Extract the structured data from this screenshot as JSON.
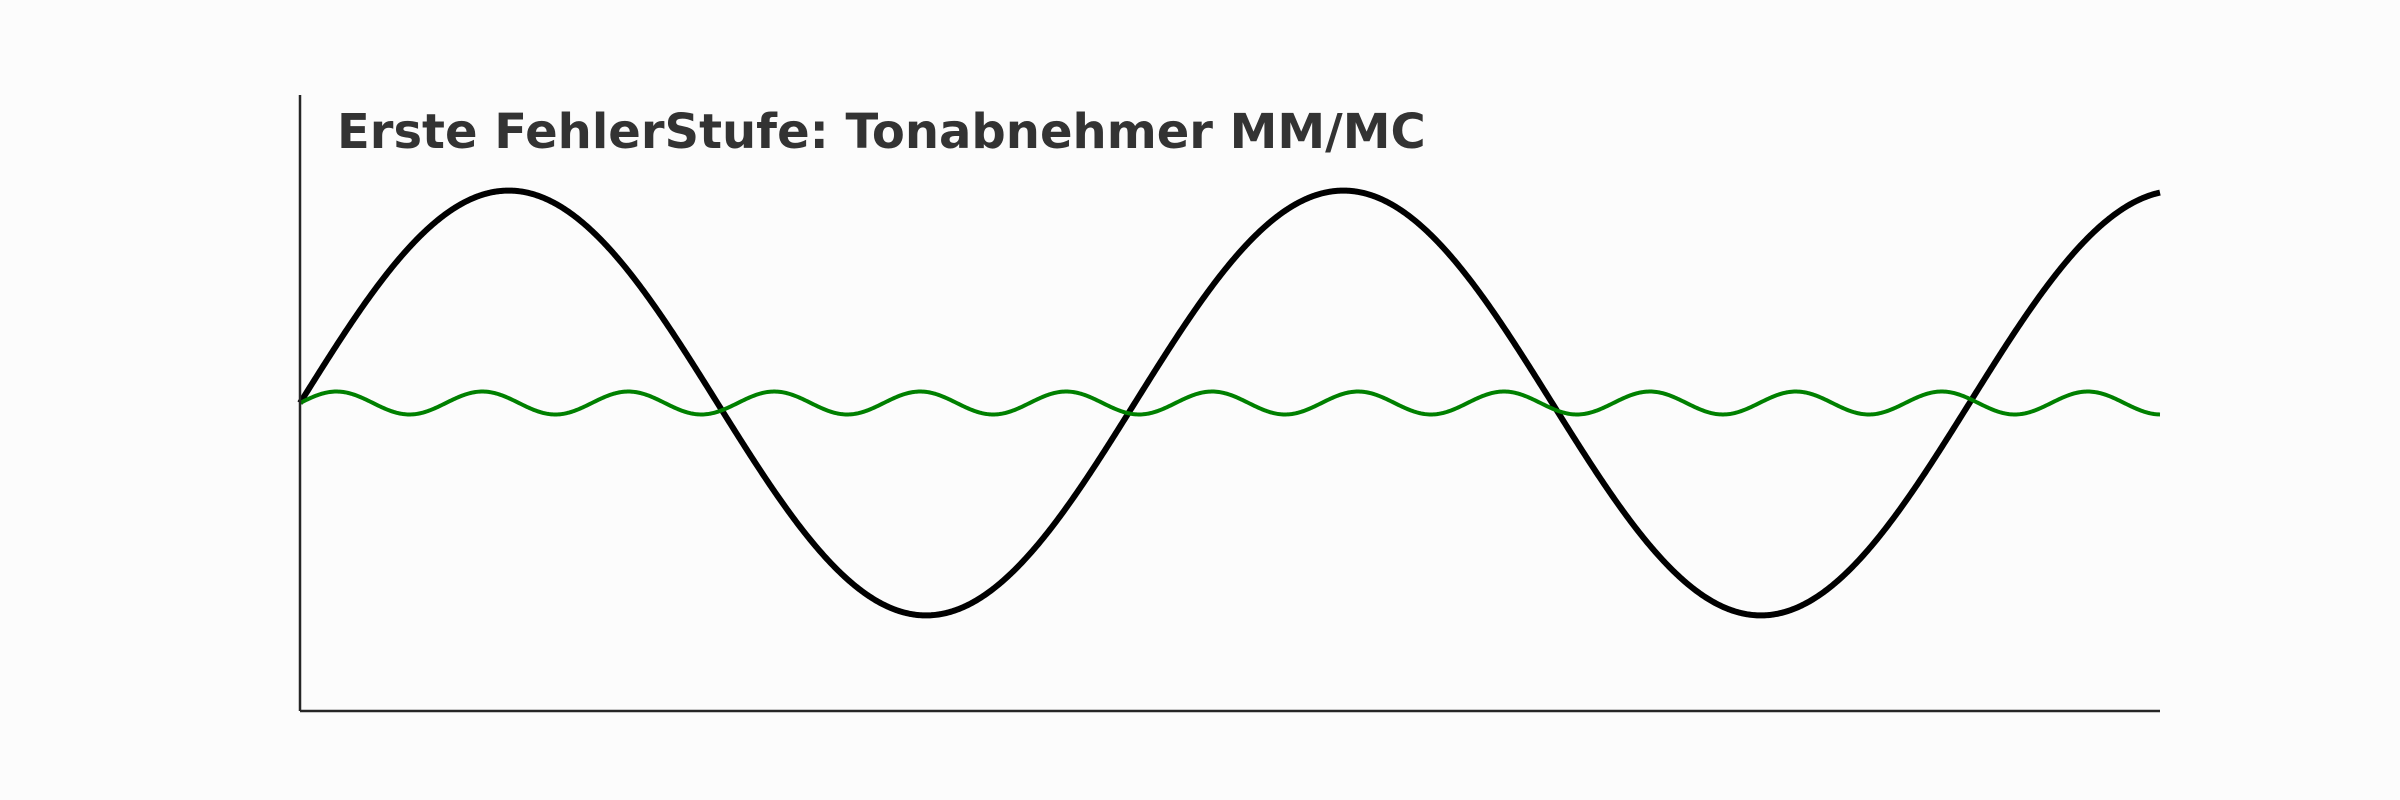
{
  "chart_data": {
    "type": "line",
    "title": "Erste FehlerStufe: Tonabnehmer MM/MC",
    "xlabel": "",
    "ylabel": "",
    "xlim": [
      0,
      14
    ],
    "ylim": [
      -1.45,
      1.45
    ],
    "grid": false,
    "legend": "none",
    "ticks": "none",
    "series": [
      {
        "function": "sine",
        "amplitude": 1.0,
        "angular_frequency": 1.0,
        "phase": 0,
        "color": "#000000"
      },
      {
        "function": "sine",
        "amplitude": 0.054,
        "angular_frequency": 5.72,
        "phase": 0,
        "color": "#008000"
      }
    ]
  },
  "colors": {
    "background": "#fcfcfc",
    "axis": "#262626",
    "title": "#333333"
  }
}
